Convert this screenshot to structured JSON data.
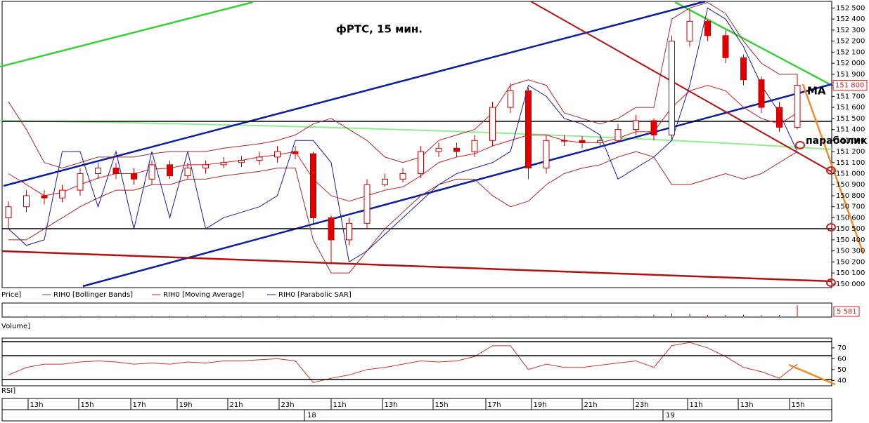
{
  "chart_data": {
    "type": "candlestick",
    "title": "фРТС,  15 мин.",
    "annotations": [
      "MA",
      "параболик"
    ],
    "price_label": "Price]",
    "open": [
      150600,
      150700,
      150800,
      150780,
      150850,
      151000,
      151050,
      151000,
      150950,
      151080,
      150980,
      151050,
      151080,
      151100,
      151120,
      151150,
      151200,
      151180,
      150600,
      150400,
      150550,
      150900,
      150950,
      151000,
      151200,
      151230,
      151200,
      151300,
      151600,
      151750,
      151050,
      151300,
      151300,
      151280,
      151300,
      151400,
      151480,
      151350,
      152200,
      152380,
      152250,
      152050,
      151850,
      151600,
      151420
    ],
    "high": [
      150750,
      150850,
      150850,
      150900,
      151050,
      151100,
      151100,
      151050,
      151120,
      151120,
      151100,
      151120,
      151150,
      151160,
      151200,
      151250,
      151250,
      151200,
      150620,
      150600,
      150950,
      151000,
      151050,
      151250,
      151280,
      151280,
      151350,
      151650,
      151820,
      151780,
      151350,
      151350,
      151340,
      151350,
      151450,
      151530,
      151500,
      152250,
      152480,
      152400,
      152300,
      152080,
      151880,
      151650,
      151900
    ],
    "low": [
      150500,
      150650,
      150720,
      150740,
      150800,
      150950,
      150950,
      150900,
      150900,
      150950,
      150950,
      151000,
      151050,
      151060,
      151080,
      151100,
      151130,
      150550,
      150180,
      150350,
      150500,
      150880,
      150920,
      150960,
      151150,
      151150,
      151150,
      151250,
      151550,
      150950,
      151000,
      151250,
      151230,
      151240,
      151280,
      151350,
      151300,
      151300,
      152150,
      152200,
      152000,
      151800,
      151550,
      151380,
      151400
    ],
    "close": [
      150700,
      150800,
      150780,
      150850,
      151000,
      151050,
      151000,
      150950,
      151080,
      150980,
      151050,
      151080,
      151100,
      151120,
      151150,
      151200,
      151180,
      150600,
      150400,
      150550,
      150900,
      150950,
      151000,
      151200,
      151230,
      151200,
      151300,
      151600,
      151750,
      151050,
      151300,
      151300,
      151280,
      151300,
      151400,
      151480,
      151350,
      152200,
      152380,
      152250,
      152050,
      151850,
      151600,
      151420,
      151800
    ],
    "up_color": "#ffffff",
    "down_color": "#e00000",
    "candle_edge": "#c00000",
    "series": [
      {
        "name": "RIH0 [Bollinger Bands]",
        "color": "#a52a2a",
        "upper": [
          151650,
          151400,
          151100,
          151050,
          151100,
          151150,
          151150,
          151150,
          151180,
          151200,
          151200,
          151200,
          151230,
          151250,
          151270,
          151300,
          151350,
          151450,
          151500,
          151400,
          151300,
          151150,
          151100,
          151150,
          151300,
          151350,
          151400,
          151550,
          151800,
          151850,
          151800,
          151550,
          151500,
          151450,
          151500,
          151600,
          151600,
          152400,
          152500,
          152550,
          152450,
          152200,
          152000,
          151900,
          151900
        ],
        "lower": [
          150400,
          150400,
          150500,
          150600,
          150700,
          150780,
          150850,
          150850,
          150900,
          150900,
          150950,
          150950,
          150980,
          151000,
          151020,
          151050,
          151050,
          150400,
          150100,
          150100,
          150300,
          150500,
          150650,
          150800,
          150900,
          150950,
          150950,
          150800,
          150700,
          150750,
          150900,
          151000,
          151050,
          151080,
          151150,
          151200,
          151150,
          150900,
          150900,
          150950,
          151000,
          150950,
          151000,
          151100,
          151200
        ]
      },
      {
        "name": "RIH0 [Moving Average]",
        "color": "#d42020",
        "values": [
          151000,
          150900,
          150800,
          150830,
          150900,
          150960,
          151000,
          151000,
          151040,
          151050,
          151080,
          151080,
          151100,
          151120,
          151150,
          151170,
          151200,
          150950,
          150800,
          150750,
          150800,
          150850,
          150880,
          150980,
          151100,
          151150,
          151180,
          151250,
          151300,
          151350,
          151350,
          151300,
          151280,
          151280,
          151320,
          151380,
          151380,
          151600,
          151750,
          151800,
          151750,
          151600,
          151500,
          151450,
          151550
        ]
      },
      {
        "name": "RIH0 [Parabolic SAR]",
        "color": "#1a1aa0",
        "values": [
          150500,
          150350,
          150400,
          151200,
          151200,
          150700,
          151200,
          150500,
          151200,
          150600,
          151200,
          150500,
          150600,
          150650,
          150700,
          150800,
          151300,
          151300,
          151100,
          150200,
          150300,
          150450,
          150600,
          150750,
          150900,
          151000,
          151050,
          151100,
          151200,
          151800,
          151700,
          151500,
          151450,
          151350,
          150950,
          151050,
          151150,
          151300,
          151800,
          152500,
          152400,
          152150,
          151800,
          151550,
          151200
        ]
      }
    ],
    "ylim": [
      149980,
      152560
    ],
    "yticks": [
      {
        "value": 150000,
        "label": "150 000"
      },
      {
        "value": 150100,
        "label": "150 100"
      },
      {
        "value": 150200,
        "label": "150 200"
      },
      {
        "value": 150300,
        "label": "150 300"
      },
      {
        "value": 150400,
        "label": "150 400"
      },
      {
        "value": 150500,
        "label": "150 500"
      },
      {
        "value": 150600,
        "label": "150 600"
      },
      {
        "value": 150700,
        "label": "150 700"
      },
      {
        "value": 150800,
        "label": "150 800"
      },
      {
        "value": 150900,
        "label": "150 900"
      },
      {
        "value": 151000,
        "label": "151 000"
      },
      {
        "value": 151100,
        "label": "151 100"
      },
      {
        "value": 151200,
        "label": "151 200"
      },
      {
        "value": 151300,
        "label": "151 300"
      },
      {
        "value": 151400,
        "label": "151 400"
      },
      {
        "value": 151500,
        "label": "151 500"
      },
      {
        "value": 151600,
        "label": "151 600"
      },
      {
        "value": 151700,
        "label": "151 700"
      },
      {
        "value": 151800,
        "label": "151 800"
      },
      {
        "value": 151900,
        "label": "151 900"
      },
      {
        "value": 152000,
        "label": "152 000"
      },
      {
        "value": 152100,
        "label": "152 100"
      },
      {
        "value": 152200,
        "label": "152 200"
      },
      {
        "value": 152300,
        "label": "152 300"
      },
      {
        "value": 152400,
        "label": "152 400"
      },
      {
        "value": 152500,
        "label": "152 500"
      }
    ],
    "last_price": {
      "value": 151800,
      "label": "151 800"
    },
    "volume": {
      "label": "Volume]",
      "ylim": [
        0,
        6000
      ],
      "color": "#c00000",
      "values": [
        200,
        200,
        200,
        200,
        200,
        200,
        200,
        200,
        200,
        200,
        200,
        200,
        200,
        200,
        200,
        200,
        200,
        200,
        200,
        200,
        200,
        200,
        200,
        200,
        200,
        200,
        200,
        200,
        200,
        200,
        200,
        200,
        200,
        200,
        200,
        200,
        900,
        1500,
        1200,
        800,
        700,
        900,
        600,
        700,
        5581
      ],
      "last_label": "5 581"
    },
    "rsi": {
      "label": "RSI]",
      "color": "#c0392b",
      "ylim": [
        35,
        79
      ],
      "yticks": [
        40,
        50,
        60,
        70
      ],
      "values": [
        45,
        52,
        55,
        55,
        57,
        58,
        57,
        55,
        56,
        55,
        57,
        56,
        58,
        58,
        59,
        60,
        58,
        38,
        42,
        45,
        50,
        52,
        55,
        58,
        57,
        58,
        62,
        72,
        72,
        50,
        55,
        52,
        52,
        54,
        56,
        58,
        52,
        72,
        75,
        70,
        62,
        52,
        48,
        42,
        55
      ]
    },
    "time_labels": [
      "13h",
      "15h",
      "17h",
      "19h",
      "21h",
      "23h",
      "11h",
      "13h",
      "15h",
      "17h",
      "19h",
      "21h",
      "23h",
      "11h",
      "13h",
      "15h"
    ],
    "day_labels": [
      "18",
      "19"
    ]
  }
}
